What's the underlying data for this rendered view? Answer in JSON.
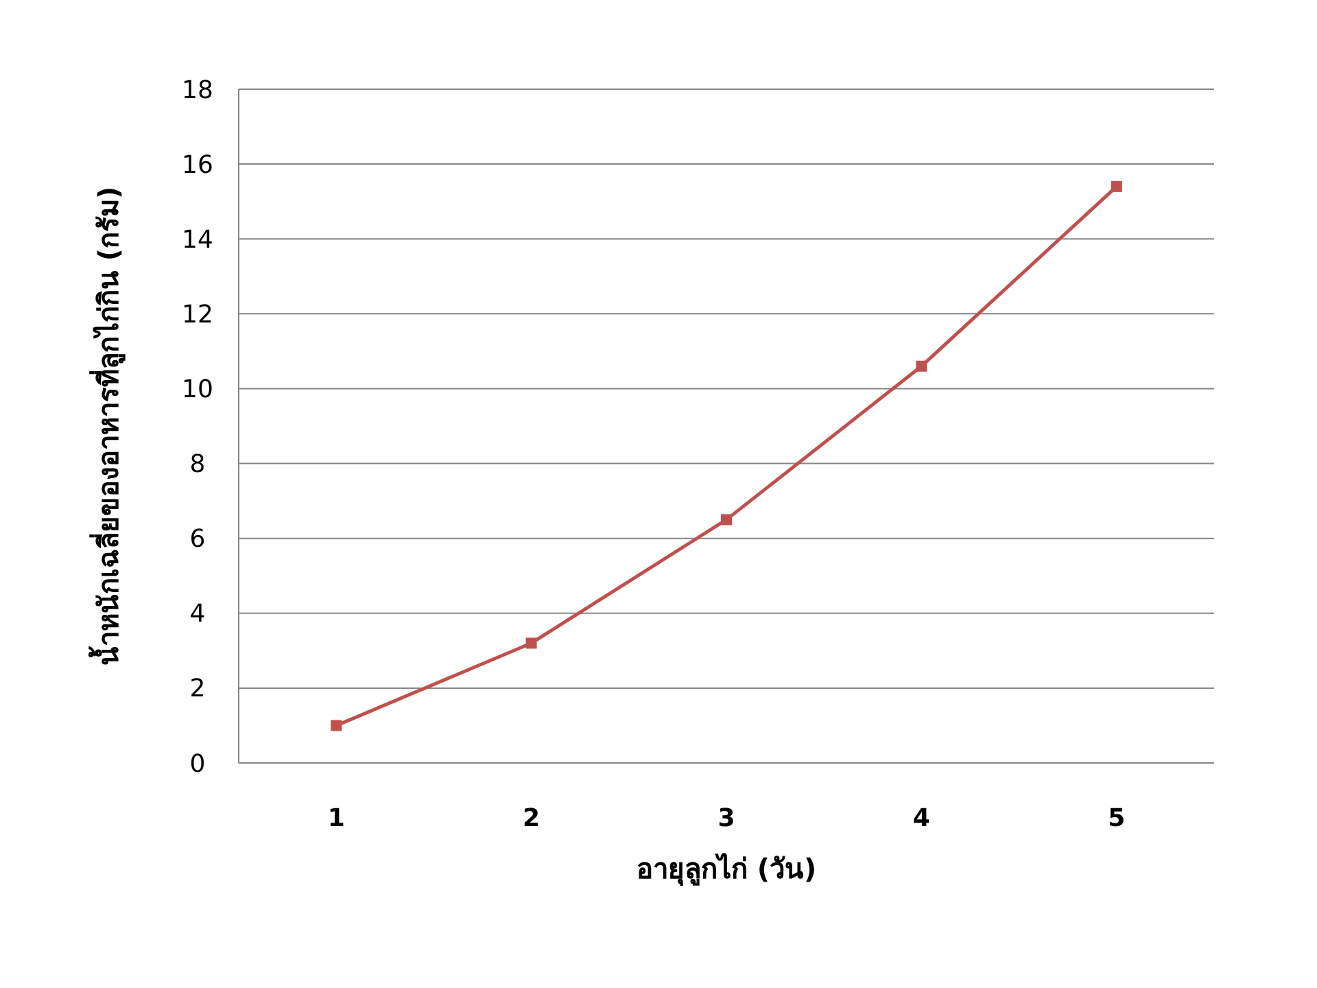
{
  "chart_data": {
    "type": "line",
    "xlabel": "อายุลูกไก่ (วัน)",
    "ylabel": "น้ำหนักเฉลี่ยของอาหารที่ลูกไก่กิน (กรัม)",
    "categories": [
      "1",
      "2",
      "3",
      "4",
      "5"
    ],
    "series": [
      {
        "color": "#c0504d",
        "values": [
          1.0,
          3.2,
          6.5,
          10.6,
          15.4
        ]
      }
    ],
    "ylim": [
      0,
      18
    ],
    "yticks": [
      0,
      2,
      4,
      6,
      8,
      10,
      12,
      14,
      16,
      18
    ],
    "grid": "y",
    "marker": "square",
    "line_style": "solid"
  }
}
